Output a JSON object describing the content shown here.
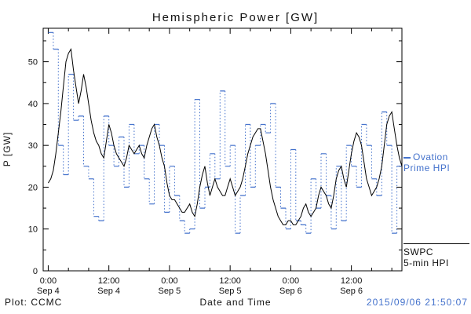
{
  "title": "Hemispheric Power [GW]",
  "footer": {
    "plot_credit": "Plot: CCMC",
    "timestamp": "2015/09/06 21:50:07"
  },
  "legend": {
    "ovation_line1": "Ovation",
    "ovation_line2": "Prime HPI",
    "swpc_line1": "SWPC",
    "swpc_line2": "5-min HPI"
  },
  "colors": {
    "ovation": "#4472cc",
    "swpc": "#000000",
    "timestamp": "#4472cc"
  },
  "chart_data": {
    "type": "line",
    "title": "Hemispheric Power [GW]",
    "xlabel": "Date and Time",
    "ylabel": "P [GW]",
    "ylim": [
      0,
      58
    ],
    "xlim_hours": [
      -1,
      70
    ],
    "grid": false,
    "legend_position": "right",
    "y_ticks": [
      0,
      10,
      20,
      30,
      40,
      50
    ],
    "y_minor_step": 5,
    "x_minor_step": 4,
    "x_ticks": [
      {
        "hour": 0,
        "time": "0:00",
        "date": "Sep 4"
      },
      {
        "hour": 12,
        "time": "12:00",
        "date": "Sep 4"
      },
      {
        "hour": 24,
        "time": "0:00",
        "date": "Sep 5"
      },
      {
        "hour": 36,
        "time": "12:00",
        "date": "Sep 5"
      },
      {
        "hour": 48,
        "time": "0:00",
        "date": "Sep 6"
      },
      {
        "hour": 60,
        "time": "12:00",
        "date": "Sep 6"
      }
    ],
    "series": [
      {
        "name": "Ovation Prime HPI",
        "style": "step",
        "color": "#4472cc",
        "x_start": 0,
        "x_step": 1,
        "values": [
          57,
          53,
          30,
          23,
          47,
          36,
          37,
          25,
          22,
          13,
          12,
          37,
          30,
          25,
          32,
          20,
          35,
          28,
          30,
          22,
          16,
          35,
          30,
          14,
          25,
          18,
          12,
          9,
          10,
          41,
          15,
          20,
          28,
          22,
          43,
          25,
          30,
          9,
          18,
          35,
          20,
          30,
          35,
          33,
          40,
          20,
          15,
          10,
          29,
          12,
          11,
          9,
          22,
          15,
          28,
          18,
          10,
          25,
          12,
          30,
          25,
          20,
          35,
          30,
          22,
          18,
          38,
          30,
          9,
          25,
          20
        ]
      },
      {
        "name": "SWPC 5-min HPI",
        "style": "line",
        "color": "#000000",
        "x_start": 0,
        "x_step": 0.5,
        "values": [
          21,
          22,
          24,
          28,
          33,
          38,
          44,
          50,
          52,
          53,
          48,
          44,
          40,
          43,
          47,
          44,
          40,
          36,
          33,
          31,
          30,
          28,
          27,
          31,
          35,
          33,
          30,
          28,
          27,
          26,
          25,
          27,
          30,
          29,
          28,
          29,
          30,
          28,
          27,
          30,
          32,
          34,
          35,
          32,
          30,
          27,
          25,
          21,
          18,
          17,
          17,
          16,
          15,
          14,
          14,
          15,
          16,
          14,
          13,
          16,
          20,
          23,
          25,
          21,
          18,
          20,
          22,
          20,
          19,
          18,
          18,
          20,
          22,
          20,
          18,
          19,
          20,
          22,
          25,
          28,
          30,
          32,
          33,
          34,
          34,
          31,
          28,
          24,
          20,
          17,
          15,
          13,
          12,
          11,
          11,
          12,
          12,
          11,
          11,
          12,
          13,
          15,
          16,
          14,
          13,
          14,
          15,
          18,
          20,
          19,
          18,
          16,
          15,
          18,
          22,
          24,
          25,
          22,
          20,
          24,
          28,
          31,
          33,
          32,
          30,
          26,
          22,
          20,
          18,
          19,
          20,
          22,
          25,
          30,
          35,
          37,
          38,
          34,
          30,
          27,
          25
        ]
      }
    ]
  }
}
